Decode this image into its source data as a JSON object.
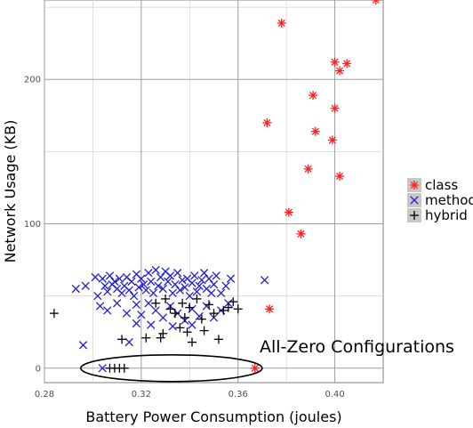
{
  "chart_data": {
    "type": "scatter",
    "xlabel": "Battery Power Consumption (joules)",
    "ylabel": "Network Usage (KB)",
    "xlim": [
      0.28,
      0.42
    ],
    "ylim": [
      -10,
      255
    ],
    "x_ticks": [
      0.28,
      0.32,
      0.36,
      0.4
    ],
    "x_tick_labels": [
      "0.28",
      "0.32",
      "0.36",
      "0.40"
    ],
    "y_ticks": [
      0,
      100,
      200
    ],
    "y_tick_labels": [
      "0",
      "100",
      "200"
    ],
    "grid": true,
    "legend_position": "right",
    "annotation": "All-Zero Configurations",
    "series": [
      {
        "name": "class",
        "marker": "asterisk",
        "color": "#ff2020",
        "points": [
          [
            0.417,
            255
          ],
          [
            0.378,
            239
          ],
          [
            0.405,
            211
          ],
          [
            0.4,
            212
          ],
          [
            0.402,
            206
          ],
          [
            0.391,
            189
          ],
          [
            0.4,
            180
          ],
          [
            0.372,
            170
          ],
          [
            0.392,
            164
          ],
          [
            0.399,
            158
          ],
          [
            0.389,
            138
          ],
          [
            0.402,
            133
          ],
          [
            0.381,
            108
          ],
          [
            0.386,
            93
          ],
          [
            0.373,
            41
          ],
          [
            0.367,
            0
          ]
        ]
      },
      {
        "name": "method",
        "marker": "x",
        "color": "#1f1fd6",
        "points": [
          [
            0.293,
            55
          ],
          [
            0.297,
            57
          ],
          [
            0.301,
            63
          ],
          [
            0.302,
            50
          ],
          [
            0.304,
            62
          ],
          [
            0.305,
            57
          ],
          [
            0.306,
            53
          ],
          [
            0.307,
            64
          ],
          [
            0.308,
            58
          ],
          [
            0.309,
            60
          ],
          [
            0.31,
            55
          ],
          [
            0.311,
            62
          ],
          [
            0.312,
            52
          ],
          [
            0.313,
            57
          ],
          [
            0.314,
            63
          ],
          [
            0.315,
            54
          ],
          [
            0.316,
            60
          ],
          [
            0.317,
            50
          ],
          [
            0.318,
            65
          ],
          [
            0.319,
            56
          ],
          [
            0.32,
            62
          ],
          [
            0.321,
            58
          ],
          [
            0.322,
            54
          ],
          [
            0.323,
            66
          ],
          [
            0.324,
            60
          ],
          [
            0.325,
            52
          ],
          [
            0.326,
            68
          ],
          [
            0.327,
            57
          ],
          [
            0.328,
            63
          ],
          [
            0.329,
            55
          ],
          [
            0.33,
            67
          ],
          [
            0.331,
            60
          ],
          [
            0.332,
            64
          ],
          [
            0.333,
            52
          ],
          [
            0.334,
            58
          ],
          [
            0.335,
            66
          ],
          [
            0.336,
            54
          ],
          [
            0.337,
            61
          ],
          [
            0.338,
            56
          ],
          [
            0.339,
            62
          ],
          [
            0.34,
            50
          ],
          [
            0.341,
            59
          ],
          [
            0.342,
            64
          ],
          [
            0.343,
            53
          ],
          [
            0.344,
            57
          ],
          [
            0.345,
            61
          ],
          [
            0.346,
            66
          ],
          [
            0.347,
            55
          ],
          [
            0.348,
            62
          ],
          [
            0.349,
            52
          ],
          [
            0.35,
            58
          ],
          [
            0.351,
            64
          ],
          [
            0.353,
            52
          ],
          [
            0.355,
            57
          ],
          [
            0.357,
            62
          ],
          [
            0.303,
            43
          ],
          [
            0.306,
            40
          ],
          [
            0.31,
            45
          ],
          [
            0.314,
            38
          ],
          [
            0.318,
            44
          ],
          [
            0.32,
            37
          ],
          [
            0.323,
            45
          ],
          [
            0.326,
            40
          ],
          [
            0.329,
            35
          ],
          [
            0.332,
            43
          ],
          [
            0.335,
            38
          ],
          [
            0.338,
            33
          ],
          [
            0.341,
            41
          ],
          [
            0.344,
            36
          ],
          [
            0.347,
            43
          ],
          [
            0.35,
            35
          ],
          [
            0.353,
            40
          ],
          [
            0.356,
            45
          ],
          [
            0.318,
            31
          ],
          [
            0.333,
            29
          ],
          [
            0.341,
            30
          ],
          [
            0.296,
            16
          ],
          [
            0.315,
            18
          ],
          [
            0.324,
            30
          ],
          [
            0.371,
            61
          ],
          [
            0.304,
            0
          ]
        ]
      },
      {
        "name": "hybrid",
        "marker": "plus",
        "color": "#000000",
        "points": [
          [
            0.284,
            38
          ],
          [
            0.312,
            20
          ],
          [
            0.322,
            21
          ],
          [
            0.328,
            21
          ],
          [
            0.332,
            41
          ],
          [
            0.334,
            38
          ],
          [
            0.336,
            28
          ],
          [
            0.337,
            45
          ],
          [
            0.338,
            35
          ],
          [
            0.339,
            25
          ],
          [
            0.34,
            42
          ],
          [
            0.341,
            18
          ],
          [
            0.343,
            48
          ],
          [
            0.345,
            34
          ],
          [
            0.346,
            26
          ],
          [
            0.348,
            44
          ],
          [
            0.35,
            38
          ],
          [
            0.352,
            20
          ],
          [
            0.354,
            40
          ],
          [
            0.356,
            42
          ],
          [
            0.358,
            46
          ],
          [
            0.36,
            41
          ],
          [
            0.33,
            48
          ],
          [
            0.326,
            45
          ],
          [
            0.329,
            24
          ],
          [
            0.307,
            0
          ],
          [
            0.309,
            0
          ],
          [
            0.311,
            0
          ],
          [
            0.313,
            0
          ]
        ]
      }
    ]
  }
}
